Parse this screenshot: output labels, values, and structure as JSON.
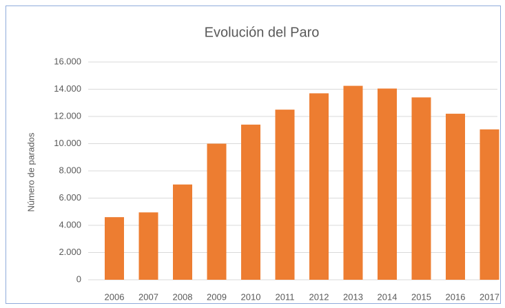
{
  "chart_data": {
    "type": "bar",
    "title": "Evolución del Paro",
    "y_label": "Número de parados",
    "categories": [
      "2006",
      "2007",
      "2008",
      "2009",
      "2010",
      "2011",
      "2012",
      "2013",
      "2014",
      "2015",
      "2016",
      "2017"
    ],
    "values": [
      4600,
      4950,
      7000,
      10000,
      11400,
      12500,
      13700,
      14250,
      14050,
      13400,
      12200,
      11050
    ],
    "color": "#ed7d31",
    "ylim": [
      0,
      16000
    ],
    "yticks": [
      0,
      {
        "value": 2000,
        "label": "2.000"
      },
      {
        "value": 4000,
        "label": "4.000"
      },
      {
        "value": 6000,
        "label": "6.000"
      },
      {
        "value": 8000,
        "label": "8.000"
      },
      {
        "value": 10000,
        "label": "10.000"
      },
      {
        "value": 12000,
        "label": "12.000"
      },
      {
        "value": 14000,
        "label": "14.000"
      },
      {
        "value": 16000,
        "label": "16.000"
      }
    ],
    "grid": true
  }
}
